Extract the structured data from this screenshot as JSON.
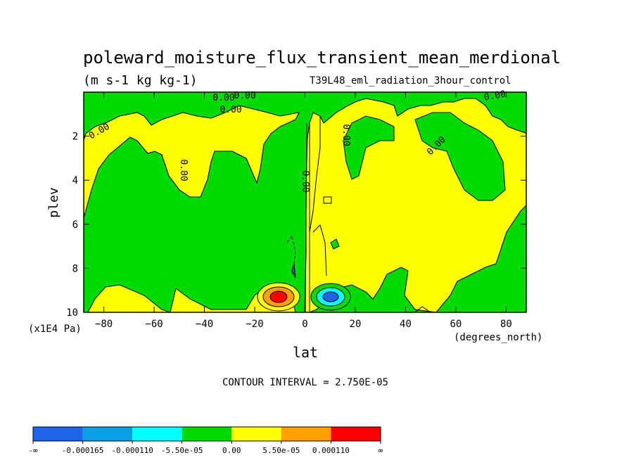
{
  "chart_data": {
    "type": "contour",
    "title": "poleward_moisture_flux_transient_mean_merdional",
    "units": "(m s-1 kg kg-1)",
    "experiment": "T39L48_eml_radiation_3hour_control",
    "xlabel": "lat",
    "x_units": "(degrees_north)",
    "ylabel": "plev",
    "y_units": "(x1E4 Pa)",
    "xlim": [
      -88,
      88
    ],
    "ylim": [
      10,
      0
    ],
    "x_ticks": [
      -80,
      -60,
      -40,
      -20,
      0,
      20,
      40,
      60,
      80
    ],
    "y_ticks": [
      2,
      4,
      6,
      8,
      10
    ],
    "contour_interval_text": "CONTOUR INTERVAL = 2.750E-05",
    "contour_labels": [
      "0.00",
      "0.00",
      "0.00",
      "0.00",
      "0.00",
      "0.00",
      "0.00",
      "0.00",
      "0.00"
    ],
    "colorbar": {
      "colors": [
        "#1e64e6",
        "#0aa0e6",
        "#00ffff",
        "#00dc00",
        "#ffff00",
        "#ffa000",
        "#ff0000"
      ],
      "labels": [
        "-∞",
        "-0.000165",
        "-0.000110",
        "-5.50e-05",
        "0.00",
        "5.50e-05",
        "0.000110",
        "∞"
      ]
    },
    "colors": {
      "positive_weak": "#ffff00",
      "negative_weak": "#00dc00",
      "positive_mid": "#ffa000",
      "positive_strong": "#ff0000",
      "negative_mid": "#00ffff",
      "negative_strong": "#1e64e6"
    }
  }
}
